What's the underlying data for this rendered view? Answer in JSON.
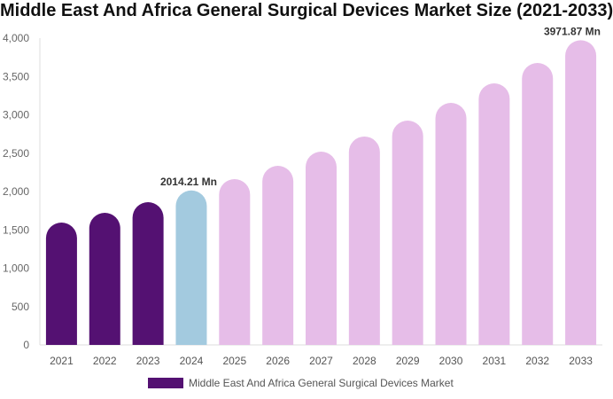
{
  "chart_data": {
    "type": "bar",
    "title": "Middle East And Africa General Surgical Devices Market Size (2021-2033)",
    "categories": [
      "2021",
      "2022",
      "2023",
      "2024",
      "2025",
      "2026",
      "2027",
      "2028",
      "2029",
      "2030",
      "2031",
      "2032",
      "2033"
    ],
    "series": [
      {
        "name": "Middle East And Africa General Surgical Devices Market",
        "values": [
          1595,
          1722,
          1861,
          2014.21,
          2162,
          2335,
          2520,
          2717,
          2925,
          3156,
          3410,
          3676,
          3971.87
        ]
      }
    ],
    "bar_colors": [
      "#541172",
      "#541172",
      "#541172",
      "#a3cadf",
      "#e6bde8",
      "#e6bde8",
      "#e6bde8",
      "#e6bde8",
      "#e6bde8",
      "#e6bde8",
      "#e6bde8",
      "#e6bde8",
      "#e6bde8"
    ],
    "data_labels": {
      "3": "2014.21 Mn",
      "12": "3971.87 Mn"
    },
    "yticks": [
      0,
      500,
      1000,
      1500,
      2000,
      2500,
      3000,
      3500,
      4000
    ],
    "ytick_labels": [
      "0",
      "500",
      "1,000",
      "1,500",
      "2,000",
      "2,500",
      "3,000",
      "3,500",
      "4,000"
    ],
    "ylim": [
      0,
      4000
    ],
    "xlabel": "",
    "ylabel": "",
    "grid": false,
    "legend_position": "bottom",
    "legend_color": "#541172"
  }
}
